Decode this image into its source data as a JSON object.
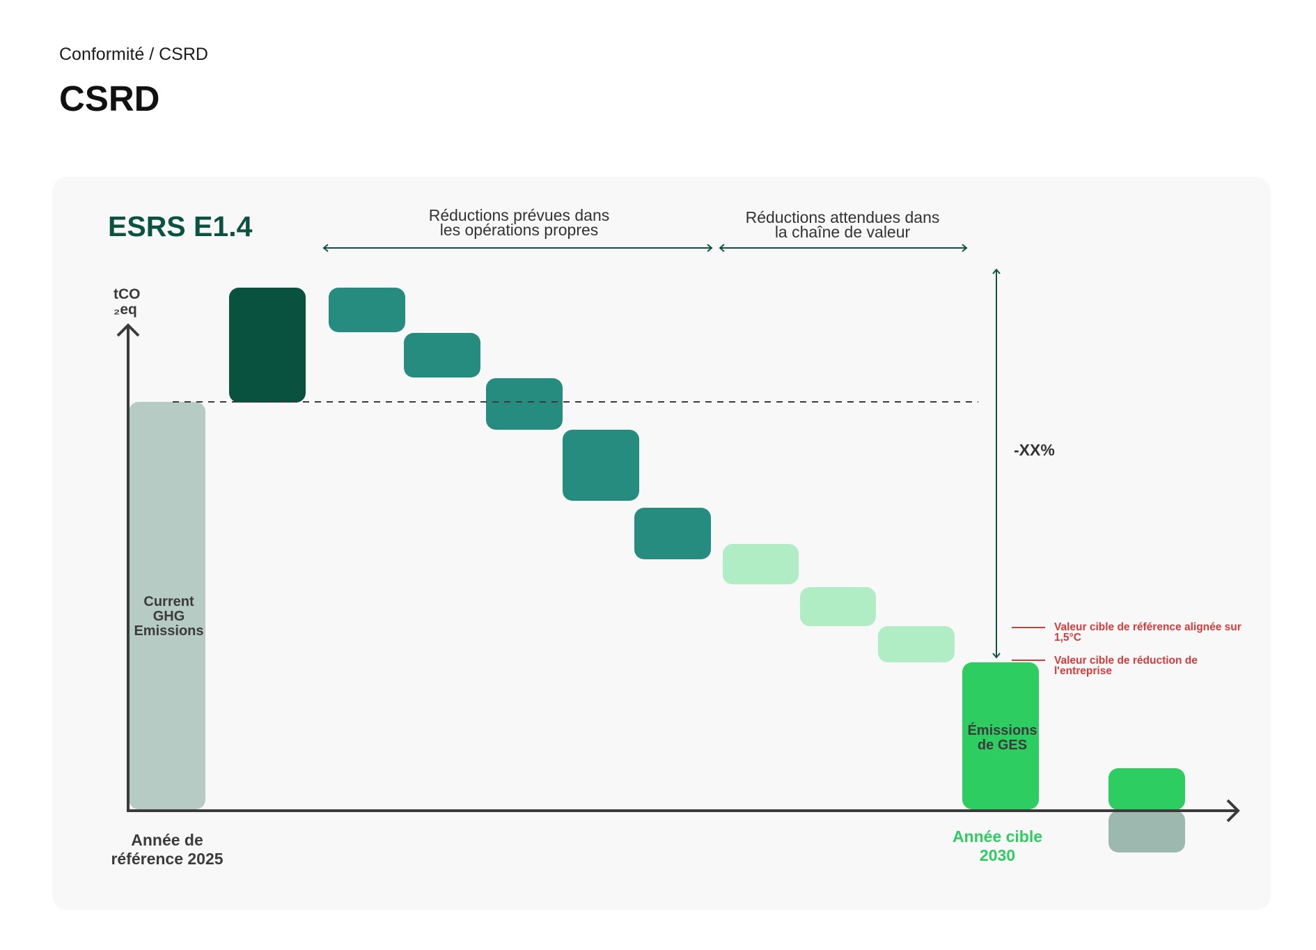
{
  "breadcrumb": "Conformité / CSRD",
  "page_title": "CSRD",
  "card": {
    "title": "ESRS E1.4",
    "y_axis_label_line1": "tCO",
    "y_axis_label_line2": "₂eq",
    "range_operations": "Réductions prévues dans\nles opérations propres",
    "range_value_chain": "Réductions attendues dans\nla chaîne de valeur",
    "reduction_label": "-XX%",
    "baseline_bar_label": "Current\nGHG\nEmissions",
    "target_bar_label": "Émissions\nde GES",
    "x_label_baseline": "Année de\nréférence 2025",
    "x_label_target": "Année cible\n2030",
    "legend": [
      {
        "text": "Valeur cible de référence alignée sur 1,5°C",
        "color": "#d63a3a"
      },
      {
        "text": "Valeur cible de réduction de l'entreprise",
        "color": "#d63a3a"
      }
    ]
  },
  "colors": {
    "baseline": "#b5cbc4",
    "increase": "#09523f",
    "operations_reduction": "#268c7f",
    "value_chain_reduction": "#b0edc5",
    "target": "#2ecd62",
    "extra_grey": "#9db8ae",
    "title": "#0b5240",
    "target_text": "#2ecd62"
  }
}
